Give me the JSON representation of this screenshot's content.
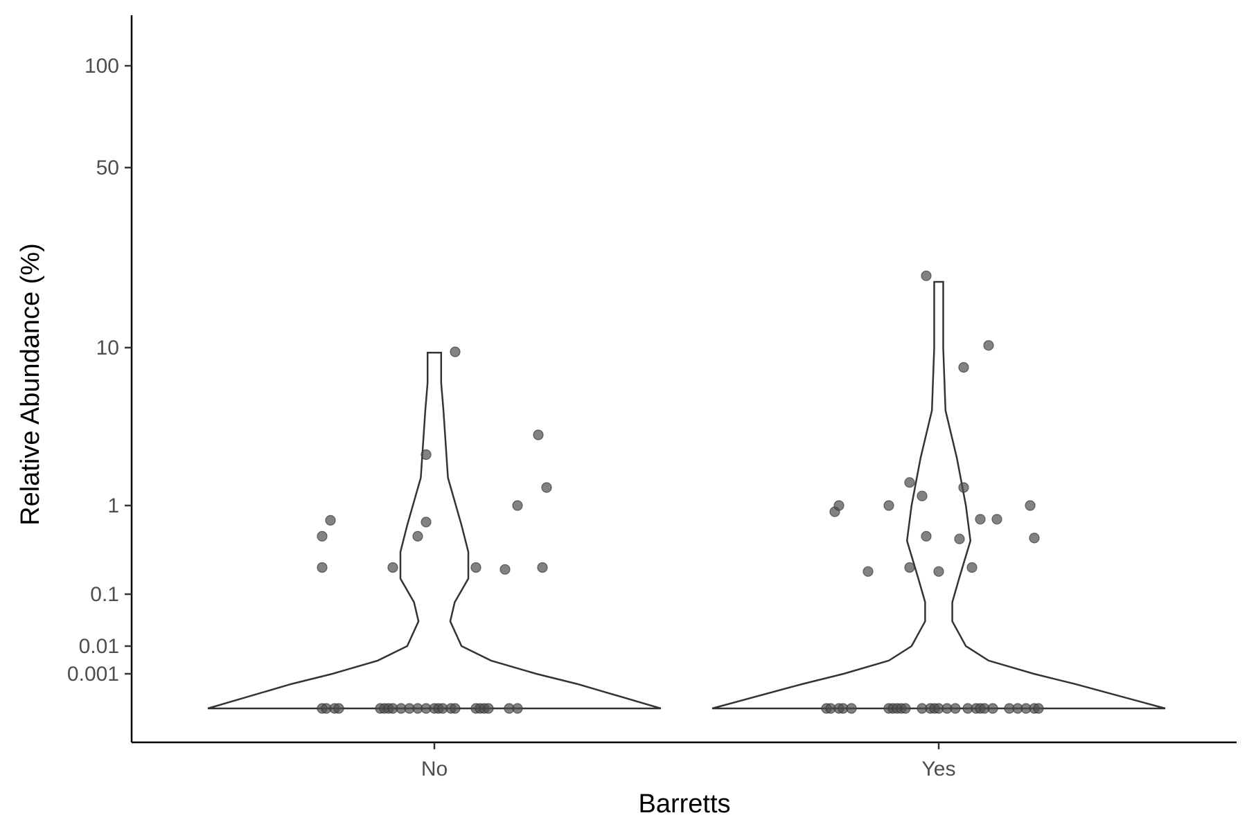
{
  "chart_data": {
    "type": "violin",
    "xlabel": "Barretts",
    "ylabel": "Relative Abundance (%)",
    "y_scale": "sqrt-like (log-modulus style compression)",
    "y_ticks": [
      {
        "value": 100,
        "label": "100"
      },
      {
        "value": 50,
        "label": "50"
      },
      {
        "value": 10,
        "label": "10"
      },
      {
        "value": 1,
        "label": "1"
      },
      {
        "value": 0.1,
        "label": "0.1"
      },
      {
        "value": 0.01,
        "label": "0.01"
      },
      {
        "value": 0.001,
        "label": "0.001"
      }
    ],
    "categories": [
      "No",
      "Yes"
    ],
    "colors": {
      "point": "#4d4d4d",
      "violin_stroke": "#333333",
      "axis": "#000000"
    },
    "groups": [
      {
        "name": "No",
        "max": 9.3,
        "violin_profile": [
          {
            "y": 0,
            "width": 1.0
          },
          {
            "y": 0.0005,
            "width": 0.63
          },
          {
            "y": 0.001,
            "width": 0.45
          },
          {
            "y": 0.003,
            "width": 0.25
          },
          {
            "y": 0.01,
            "width": 0.12
          },
          {
            "y": 0.03,
            "width": 0.07
          },
          {
            "y": 0.07,
            "width": 0.09
          },
          {
            "y": 0.15,
            "width": 0.15
          },
          {
            "y": 0.3,
            "width": 0.15
          },
          {
            "y": 0.6,
            "width": 0.12
          },
          {
            "y": 1.5,
            "width": 0.06
          },
          {
            "y": 4,
            "width": 0.04
          },
          {
            "y": 6,
            "width": 0.03
          },
          {
            "y": 9.3,
            "width": 0.03
          }
        ],
        "points": [
          {
            "x_jitter": -0.27,
            "y": 0.2
          },
          {
            "x_jitter": -0.27,
            "y": 0.45
          },
          {
            "x_jitter": -0.25,
            "y": 0.68
          },
          {
            "x_jitter": -0.1,
            "y": 0.2
          },
          {
            "x_jitter": -0.04,
            "y": 0.45
          },
          {
            "x_jitter": -0.02,
            "y": 0.65
          },
          {
            "x_jitter": -0.02,
            "y": 2.1
          },
          {
            "x_jitter": 0.05,
            "y": 9.4
          },
          {
            "x_jitter": 0.1,
            "y": 0.2
          },
          {
            "x_jitter": 0.17,
            "y": 0.19
          },
          {
            "x_jitter": 0.2,
            "y": 1.0
          },
          {
            "x_jitter": 0.25,
            "y": 2.8
          },
          {
            "x_jitter": 0.26,
            "y": 0.2
          },
          {
            "x_jitter": 0.27,
            "y": 1.3
          },
          {
            "x_jitter": -0.27,
            "y": 0
          },
          {
            "x_jitter": -0.26,
            "y": 0
          },
          {
            "x_jitter": -0.24,
            "y": 0
          },
          {
            "x_jitter": -0.23,
            "y": 0
          },
          {
            "x_jitter": -0.13,
            "y": 0
          },
          {
            "x_jitter": -0.12,
            "y": 0
          },
          {
            "x_jitter": -0.11,
            "y": 0
          },
          {
            "x_jitter": -0.1,
            "y": 0
          },
          {
            "x_jitter": -0.08,
            "y": 0
          },
          {
            "x_jitter": -0.06,
            "y": 0
          },
          {
            "x_jitter": -0.04,
            "y": 0
          },
          {
            "x_jitter": -0.02,
            "y": 0
          },
          {
            "x_jitter": 0.0,
            "y": 0
          },
          {
            "x_jitter": 0.01,
            "y": 0
          },
          {
            "x_jitter": 0.02,
            "y": 0
          },
          {
            "x_jitter": 0.04,
            "y": 0
          },
          {
            "x_jitter": 0.05,
            "y": 0
          },
          {
            "x_jitter": 0.1,
            "y": 0
          },
          {
            "x_jitter": 0.11,
            "y": 0
          },
          {
            "x_jitter": 0.12,
            "y": 0
          },
          {
            "x_jitter": 0.13,
            "y": 0
          },
          {
            "x_jitter": 0.18,
            "y": 0
          },
          {
            "x_jitter": 0.2,
            "y": 0
          }
        ]
      },
      {
        "name": "Yes",
        "max": 18,
        "violin_profile": [
          {
            "y": 0,
            "width": 1.0
          },
          {
            "y": 0.0005,
            "width": 0.6
          },
          {
            "y": 0.001,
            "width": 0.42
          },
          {
            "y": 0.003,
            "width": 0.22
          },
          {
            "y": 0.01,
            "width": 0.12
          },
          {
            "y": 0.03,
            "width": 0.06
          },
          {
            "y": 0.07,
            "width": 0.06
          },
          {
            "y": 0.15,
            "width": 0.09
          },
          {
            "y": 0.4,
            "width": 0.14
          },
          {
            "y": 1.0,
            "width": 0.12
          },
          {
            "y": 2.0,
            "width": 0.08
          },
          {
            "y": 4,
            "width": 0.03
          },
          {
            "y": 10,
            "width": 0.02
          },
          {
            "y": 18,
            "width": 0.02
          }
        ],
        "points": [
          {
            "x_jitter": -0.25,
            "y": 0.85
          },
          {
            "x_jitter": -0.24,
            "y": 1.0
          },
          {
            "x_jitter": -0.17,
            "y": 0.18
          },
          {
            "x_jitter": -0.12,
            "y": 1.0
          },
          {
            "x_jitter": -0.07,
            "y": 1.4
          },
          {
            "x_jitter": -0.07,
            "y": 0.2
          },
          {
            "x_jitter": -0.04,
            "y": 1.15
          },
          {
            "x_jitter": -0.03,
            "y": 0.45
          },
          {
            "x_jitter": -0.03,
            "y": 19
          },
          {
            "x_jitter": 0.0,
            "y": 0.18
          },
          {
            "x_jitter": 0.05,
            "y": 0.42
          },
          {
            "x_jitter": 0.06,
            "y": 7.5
          },
          {
            "x_jitter": 0.06,
            "y": 1.3
          },
          {
            "x_jitter": 0.08,
            "y": 0.2
          },
          {
            "x_jitter": 0.1,
            "y": 0.7
          },
          {
            "x_jitter": 0.12,
            "y": 10.2
          },
          {
            "x_jitter": 0.14,
            "y": 0.7
          },
          {
            "x_jitter": 0.22,
            "y": 1.0
          },
          {
            "x_jitter": 0.23,
            "y": 0.43
          },
          {
            "x_jitter": -0.27,
            "y": 0
          },
          {
            "x_jitter": -0.26,
            "y": 0
          },
          {
            "x_jitter": -0.24,
            "y": 0
          },
          {
            "x_jitter": -0.23,
            "y": 0
          },
          {
            "x_jitter": -0.21,
            "y": 0
          },
          {
            "x_jitter": -0.12,
            "y": 0
          },
          {
            "x_jitter": -0.11,
            "y": 0
          },
          {
            "x_jitter": -0.1,
            "y": 0
          },
          {
            "x_jitter": -0.09,
            "y": 0
          },
          {
            "x_jitter": -0.08,
            "y": 0
          },
          {
            "x_jitter": -0.04,
            "y": 0
          },
          {
            "x_jitter": -0.02,
            "y": 0
          },
          {
            "x_jitter": -0.01,
            "y": 0
          },
          {
            "x_jitter": 0.0,
            "y": 0
          },
          {
            "x_jitter": 0.02,
            "y": 0
          },
          {
            "x_jitter": 0.04,
            "y": 0
          },
          {
            "x_jitter": 0.07,
            "y": 0
          },
          {
            "x_jitter": 0.09,
            "y": 0
          },
          {
            "x_jitter": 0.1,
            "y": 0
          },
          {
            "x_jitter": 0.11,
            "y": 0
          },
          {
            "x_jitter": 0.13,
            "y": 0
          },
          {
            "x_jitter": 0.17,
            "y": 0
          },
          {
            "x_jitter": 0.19,
            "y": 0
          },
          {
            "x_jitter": 0.21,
            "y": 0
          },
          {
            "x_jitter": 0.23,
            "y": 0
          },
          {
            "x_jitter": 0.24,
            "y": 0
          }
        ]
      }
    ]
  }
}
